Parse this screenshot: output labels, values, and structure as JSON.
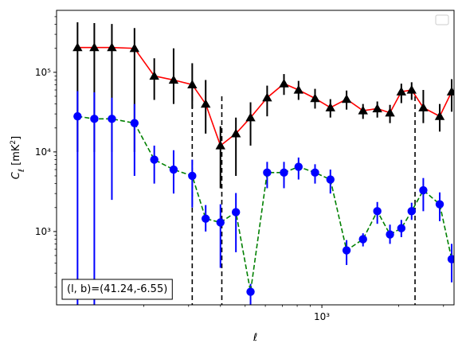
{
  "chart_data": {
    "type": "scatter",
    "title": "",
    "xlabel": "ℓ",
    "ylabel": "C_ℓ [mK²]",
    "xscale": "log",
    "yscale": "log",
    "xlim": [
      91,
      3300
    ],
    "ylim": [
      120,
      600000
    ],
    "x_tick_labels": [
      {
        "value": 1000,
        "label": "10³"
      }
    ],
    "y_tick_labels": [
      {
        "value": 1000,
        "label": "10³"
      },
      {
        "value": 10000,
        "label": "10⁴"
      },
      {
        "value": 100000,
        "label": "10⁵"
      }
    ],
    "vertical_dashed_lines_x": [
      310,
      405,
      2320
    ],
    "annotation": "(l, b)=(41.24,-6.55)",
    "legend": {
      "present": true,
      "location": "upper right",
      "entries": []
    },
    "series": [
      {
        "marker": "triangle",
        "color": "#000000",
        "line_color": "#ff0000",
        "line_style": "solid",
        "x": [
          110,
          128,
          150,
          184,
          220,
          262,
          310,
          350,
          400,
          460,
          525,
          610,
          710,
          810,
          940,
          1080,
          1250,
          1450,
          1650,
          1850,
          2050,
          2250,
          2500,
          2900,
          3230
        ],
        "y": [
          205000,
          205000,
          205000,
          200000,
          90000,
          80000,
          70000,
          40000,
          12000,
          17000,
          27000,
          48000,
          72000,
          60000,
          47000,
          36000,
          46000,
          33000,
          35000,
          31000,
          57000,
          60000,
          36000,
          28000,
          57000
        ],
        "y_err_low": [
          195000,
          195000,
          195000,
          190000,
          45000,
          40000,
          35000,
          23000,
          8500,
          12000,
          15000,
          20000,
          20000,
          15000,
          12000,
          9000,
          12000,
          7000,
          8000,
          8000,
          16000,
          15000,
          13000,
          10000,
          25000
        ],
        "y_err_high": [
          220000,
          210000,
          200000,
          160000,
          60000,
          120000,
          60000,
          40000,
          9000,
          10000,
          15000,
          20000,
          23000,
          18000,
          15000,
          10000,
          13000,
          7000,
          8000,
          8000,
          15000,
          15000,
          24000,
          12000,
          25000
        ]
      },
      {
        "marker": "circle",
        "color": "#0000ff",
        "line_color": "#008000",
        "line_style": "dashed",
        "x": [
          110,
          128,
          150,
          184,
          220,
          262,
          310,
          350,
          400,
          460,
          525,
          610,
          710,
          810,
          940,
          1080,
          1250,
          1450,
          1650,
          1850,
          2050,
          2250,
          2500,
          2900,
          3230
        ],
        "y": [
          28000,
          26000,
          26000,
          23000,
          8000,
          6000,
          5000,
          1450,
          1300,
          1750,
          175,
          5500,
          5500,
          6500,
          5500,
          4500,
          580,
          800,
          1800,
          920,
          1100,
          1800,
          3300,
          2200,
          450
        ],
        "y_err_low": [
          27880,
          25880,
          23500,
          18000,
          4000,
          3000,
          3000,
          450,
          950,
          1200,
          55,
          2000,
          2000,
          2000,
          1500,
          1500,
          200,
          150,
          550,
          220,
          250,
          400,
          1500,
          850,
          220
        ],
        "y_err_high": [
          30000,
          30000,
          22000,
          17000,
          4000,
          4500,
          3000,
          700,
          900,
          1300,
          45,
          2000,
          2000,
          2000,
          1500,
          1500,
          200,
          150,
          550,
          300,
          300,
          500,
          1400,
          900,
          250
        ]
      }
    ]
  }
}
